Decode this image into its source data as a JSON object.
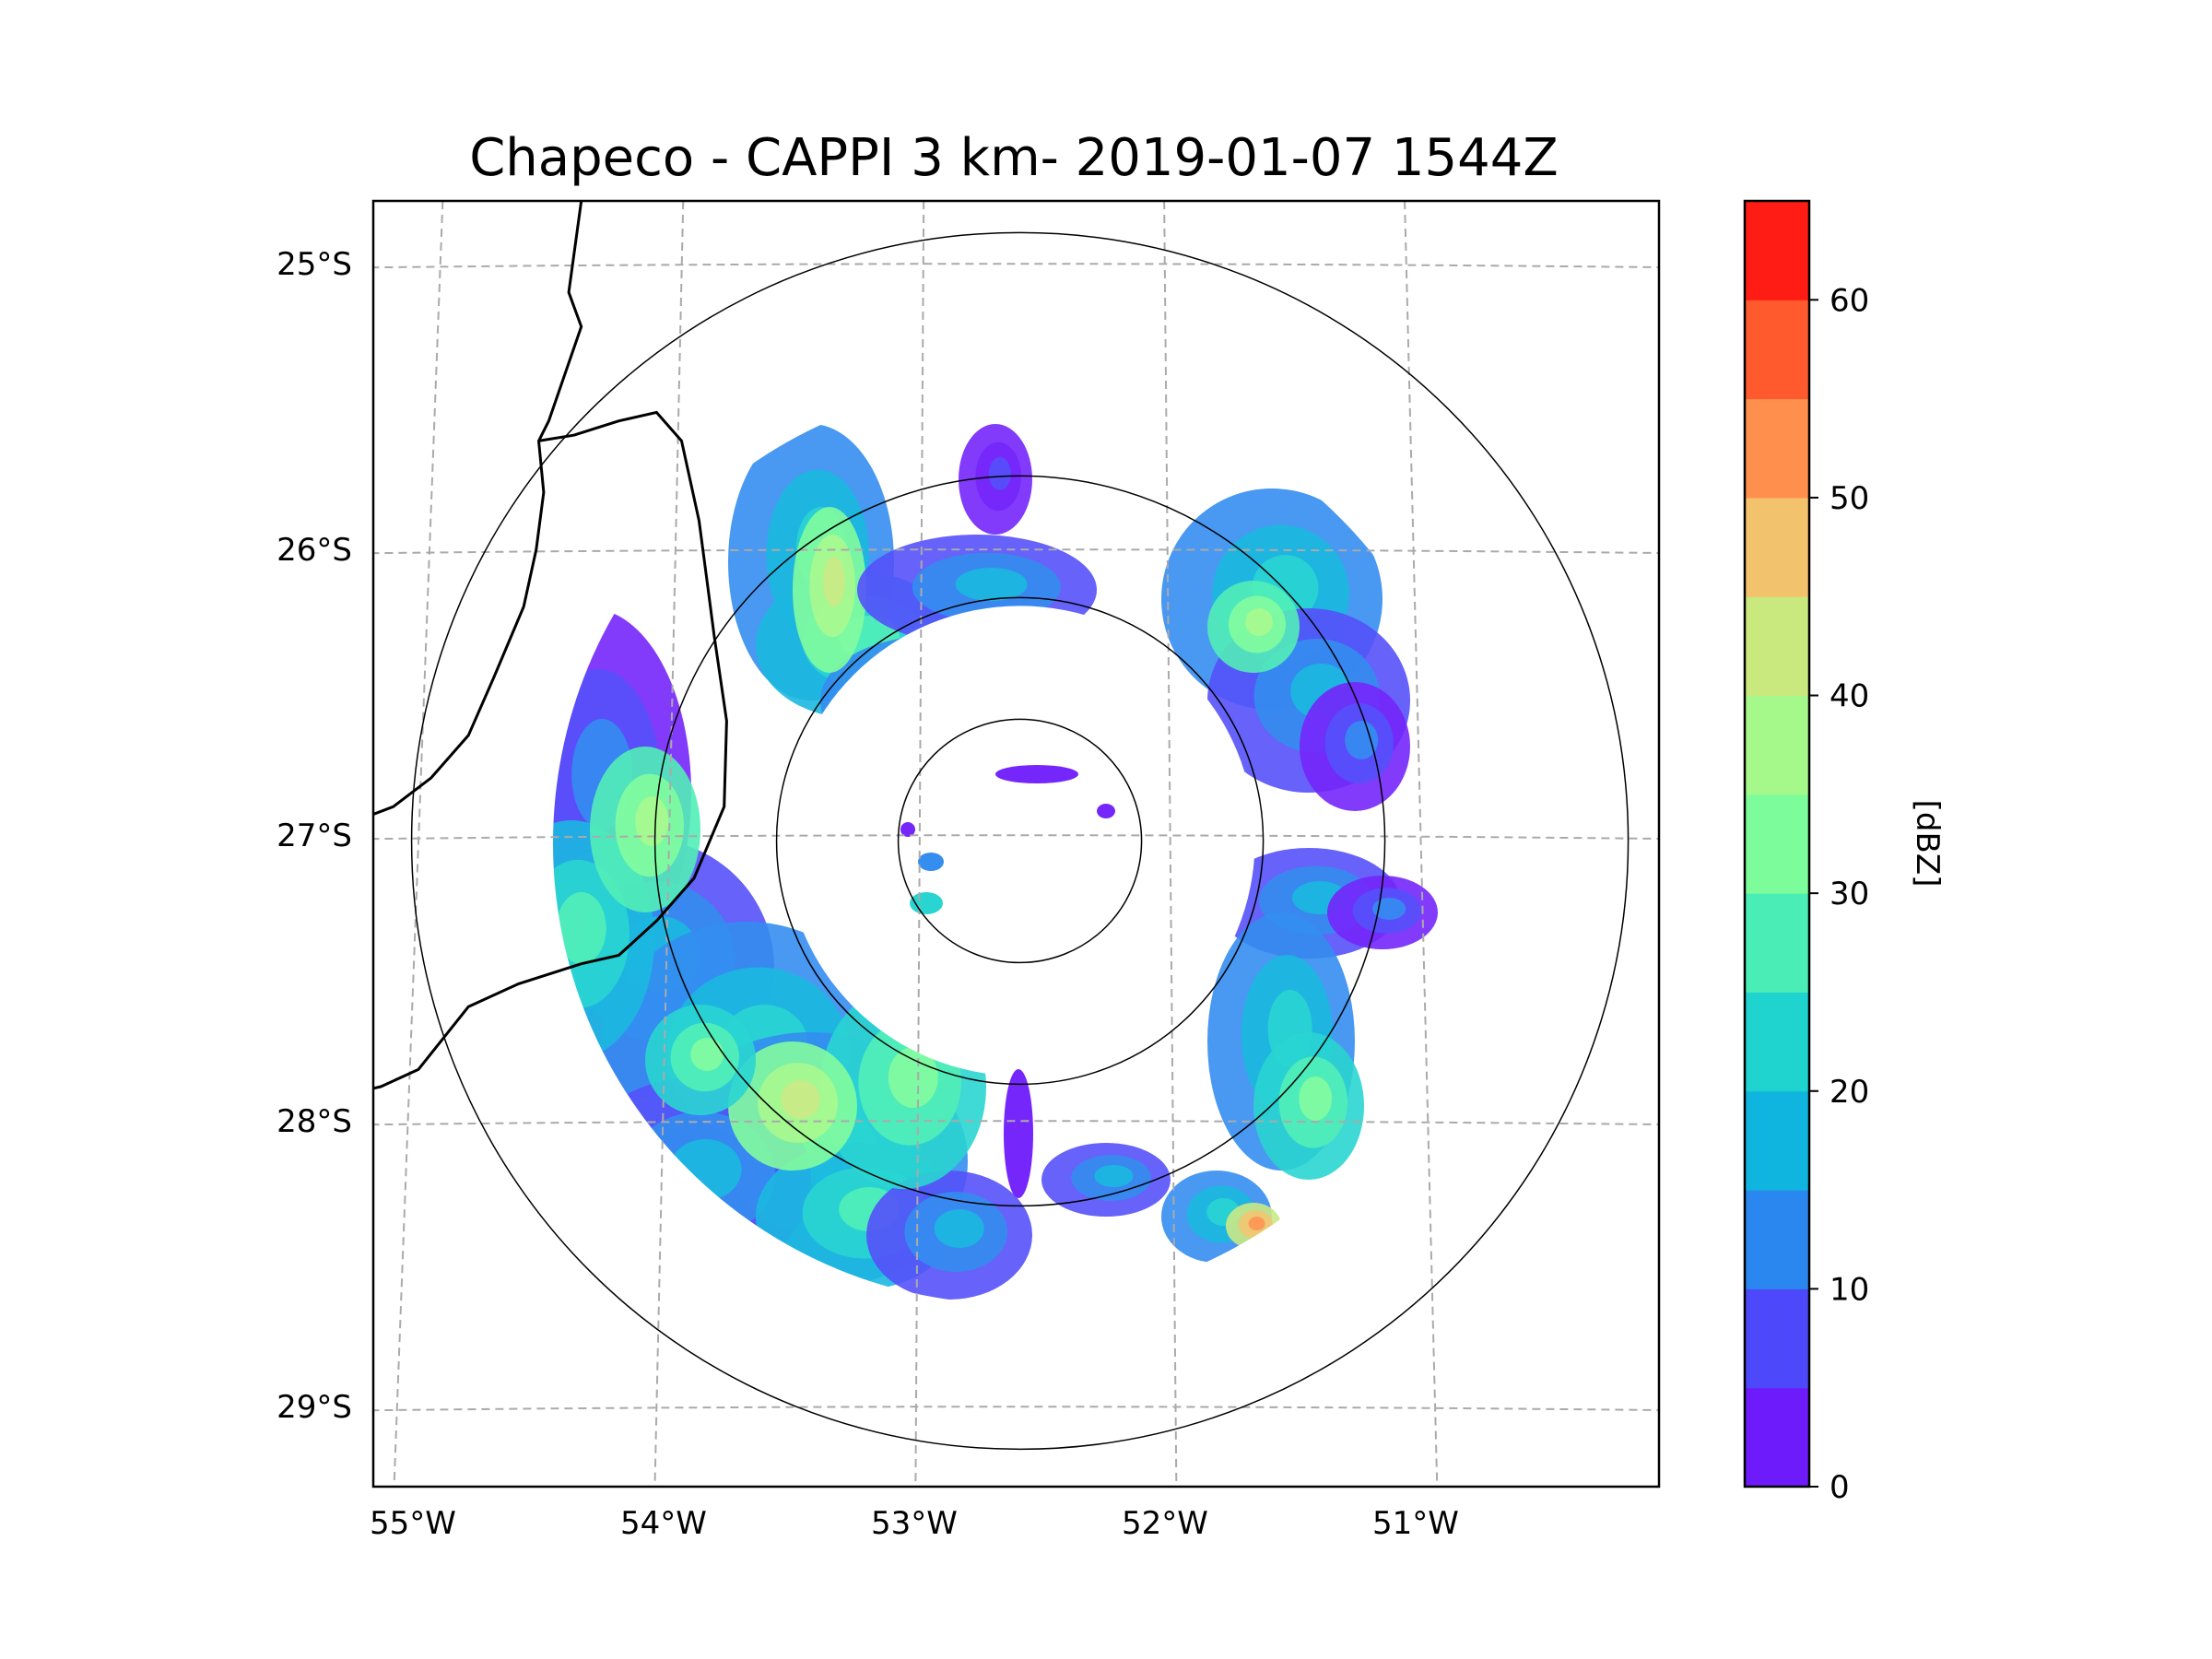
{
  "title": "Chapeco - CAPPI 3 km- 2019-01-07 1544Z",
  "map": {
    "lon_range": [
      -55.18,
      -50.05
    ],
    "lat_range": [
      -29.28,
      -24.78
    ],
    "lat_labels": [
      "25°S",
      "26°S",
      "27°S",
      "28°S",
      "29°S"
    ],
    "lon_labels": [
      "55°W",
      "54°W",
      "53°W",
      "52°W",
      "51°W"
    ],
    "radar_center": {
      "lon": -52.6,
      "lat": -27.02
    },
    "range_rings_km": [
      50,
      100,
      150,
      250
    ]
  },
  "colorbar": {
    "label": "[dBZ]",
    "min": 0,
    "max": 65,
    "step": 5,
    "tick_values": [
      0,
      10,
      20,
      30,
      40,
      50,
      60
    ],
    "tick_labels": [
      "0",
      "10",
      "20",
      "30",
      "40",
      "50",
      "60"
    ],
    "colors": [
      "#6e1bfb",
      "#4d48f9",
      "#2a87ef",
      "#10b5df",
      "#1fd3cf",
      "#49edb5",
      "#7cfc9a",
      "#a5f88a",
      "#c9e87e",
      "#f2c36c",
      "#ff8f4d",
      "#ff5a2e",
      "#ff1c14"
    ]
  },
  "colors": {
    "grid": "#aaaaaa",
    "coastline": "#000000",
    "ring": "#000000"
  }
}
